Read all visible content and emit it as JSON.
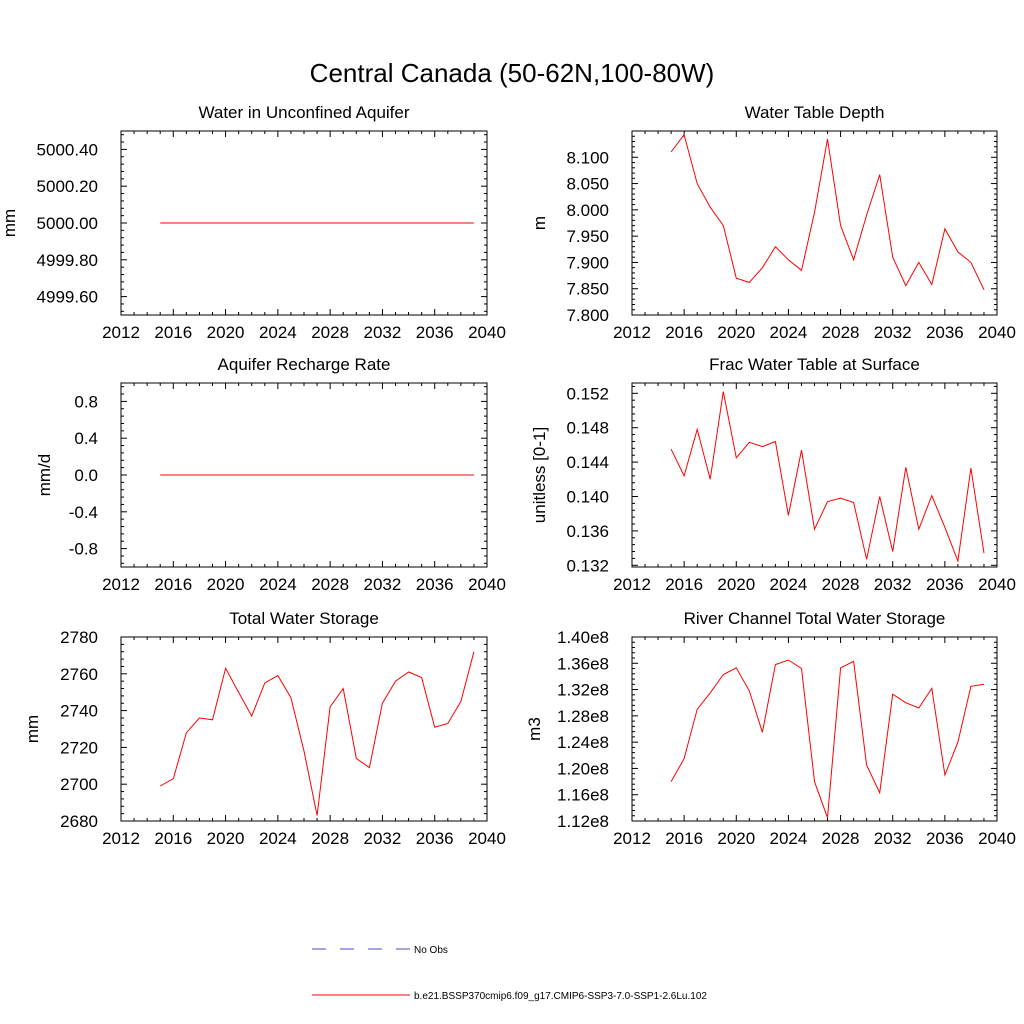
{
  "figure": {
    "title": "Central Canada (50-62N,100-80W)"
  },
  "legend": {
    "entries": [
      {
        "label": "No Obs",
        "color": "#4b4bcc",
        "dash": "dashed"
      },
      {
        "label": "b.e21.BSSP370cmip6.f09_g17.CMIP6-SSP3-7.0-SSP1-2.6Lu.102",
        "color": "#ff0000",
        "dash": "solid"
      }
    ]
  },
  "chart_data": [
    {
      "type": "line",
      "title": "Water in Unconfined Aquifer",
      "ylabel": "mm",
      "xlim": [
        2012,
        2040
      ],
      "ylim": [
        4999.5,
        5000.5
      ],
      "xticks": [
        2012,
        2016,
        2020,
        2024,
        2028,
        2032,
        2036,
        2040
      ],
      "yticks": [
        "4999.60",
        "5000.40",
        "5000.20",
        "5000.00",
        "4999.80"
      ],
      "ytick_values": [
        4999.6,
        5000.4,
        5000.2,
        5000.0,
        4999.8
      ],
      "x": [
        2015,
        2016,
        2017,
        2018,
        2019,
        2020,
        2021,
        2022,
        2023,
        2024,
        2025,
        2026,
        2027,
        2028,
        2029,
        2030,
        2031,
        2032,
        2033,
        2034,
        2035,
        2036,
        2037,
        2038,
        2039
      ],
      "series": [
        {
          "values": [
            5000,
            5000,
            5000,
            5000,
            5000,
            5000,
            5000,
            5000,
            5000,
            5000,
            5000,
            5000,
            5000,
            5000,
            5000,
            5000,
            5000,
            5000,
            5000,
            5000,
            5000,
            5000,
            5000,
            5000,
            5000
          ],
          "color": "#ff0000"
        }
      ]
    },
    {
      "type": "line",
      "title": "Water Table Depth",
      "ylabel": "m",
      "xlim": [
        2012,
        2040
      ],
      "ylim": [
        7.8,
        8.15
      ],
      "xticks": [
        2012,
        2016,
        2020,
        2024,
        2028,
        2032,
        2036,
        2040
      ],
      "yticks": [
        "7.800",
        "7.850",
        "7.900",
        "7.950",
        "8.000",
        "8.050",
        "8.100"
      ],
      "ytick_values": [
        7.8,
        7.85,
        7.9,
        7.95,
        8.0,
        8.05,
        8.1
      ],
      "x": [
        2015,
        2016,
        2017,
        2018,
        2019,
        2020,
        2021,
        2022,
        2023,
        2024,
        2025,
        2026,
        2027,
        2028,
        2029,
        2030,
        2031,
        2032,
        2033,
        2034,
        2035,
        2036,
        2037,
        2038,
        2039
      ],
      "series": [
        {
          "values": [
            8.11,
            8.143,
            8.05,
            8.005,
            7.97,
            7.87,
            7.862,
            7.89,
            7.93,
            7.905,
            7.885,
            7.995,
            8.135,
            7.97,
            7.905,
            7.99,
            8.067,
            7.91,
            7.856,
            7.9,
            7.858,
            7.964,
            7.92,
            7.9,
            7.848
          ],
          "color": "#ff0000"
        }
      ]
    },
    {
      "type": "line",
      "title": "Aquifer Recharge Rate",
      "ylabel": "mm/d",
      "xlim": [
        2012,
        2040
      ],
      "ylim": [
        -1.0,
        1.0
      ],
      "xticks": [
        2012,
        2016,
        2020,
        2024,
        2028,
        2032,
        2036,
        2040
      ],
      "yticks": [
        "-0.8",
        "-0.4",
        "0.0",
        "0.4",
        "0.8"
      ],
      "ytick_values": [
        -0.8,
        -0.4,
        0.0,
        0.4,
        0.8
      ],
      "x": [
        2015,
        2016,
        2017,
        2018,
        2019,
        2020,
        2021,
        2022,
        2023,
        2024,
        2025,
        2026,
        2027,
        2028,
        2029,
        2030,
        2031,
        2032,
        2033,
        2034,
        2035,
        2036,
        2037,
        2038,
        2039
      ],
      "series": [
        {
          "values": [
            0,
            0,
            0,
            0,
            0,
            0,
            0,
            0,
            0,
            0,
            0,
            0,
            0,
            0,
            0,
            0,
            0,
            0,
            0,
            0,
            0,
            0,
            0,
            0,
            0
          ],
          "color": "#ff0000"
        }
      ]
    },
    {
      "type": "line",
      "title": "Frac Water Table at Surface",
      "ylabel": "unitless [0-1]",
      "xlim": [
        2012,
        2040
      ],
      "ylim": [
        0.1318,
        0.1532
      ],
      "xticks": [
        2012,
        2016,
        2020,
        2024,
        2028,
        2032,
        2036,
        2040
      ],
      "yticks": [
        "0.132",
        "0.136",
        "0.140",
        "0.144",
        "0.148",
        "0.152"
      ],
      "ytick_values": [
        0.132,
        0.136,
        0.14,
        0.144,
        0.148,
        0.152
      ],
      "x": [
        2015,
        2016,
        2017,
        2018,
        2019,
        2020,
        2021,
        2022,
        2023,
        2024,
        2025,
        2026,
        2027,
        2028,
        2029,
        2030,
        2031,
        2032,
        2033,
        2034,
        2035,
        2036,
        2037,
        2038,
        2039
      ],
      "series": [
        {
          "values": [
            0.1455,
            0.1424,
            0.1478,
            0.142,
            0.1522,
            0.1445,
            0.1463,
            0.1458,
            0.1464,
            0.1378,
            0.1454,
            0.1362,
            0.1394,
            0.1398,
            0.1393,
            0.1327,
            0.14,
            0.1336,
            0.1434,
            0.1362,
            0.1401,
            0.1364,
            0.1325,
            0.1433,
            0.1334
          ],
          "color": "#ff0000"
        }
      ]
    },
    {
      "type": "line",
      "title": "Total Water Storage",
      "ylabel": "mm",
      "xlim": [
        2012,
        2040
      ],
      "ylim": [
        2680,
        2780
      ],
      "xticks": [
        2012,
        2016,
        2020,
        2024,
        2028,
        2032,
        2036,
        2040
      ],
      "yticks": [
        "2680",
        "2700",
        "2720",
        "2740",
        "2760",
        "2780"
      ],
      "ytick_values": [
        2680,
        2700,
        2720,
        2740,
        2760,
        2780
      ],
      "x": [
        2015,
        2016,
        2017,
        2018,
        2019,
        2020,
        2021,
        2022,
        2023,
        2024,
        2025,
        2026,
        2027,
        2028,
        2029,
        2030,
        2031,
        2032,
        2033,
        2034,
        2035,
        2036,
        2037,
        2038,
        2039
      ],
      "series": [
        {
          "values": [
            2699,
            2703,
            2728,
            2736,
            2735,
            2763,
            2750,
            2737,
            2755,
            2759,
            2747,
            2718,
            2683,
            2742,
            2752,
            2714,
            2709,
            2744,
            2756,
            2761,
            2758,
            2731,
            2733,
            2745,
            2772
          ],
          "color": "#ff0000"
        }
      ]
    },
    {
      "type": "line",
      "title": "River Channel Total Water Storage",
      "ylabel": "m3",
      "xlim": [
        2012,
        2040
      ],
      "ylim": [
        112000000.0,
        140000000.0
      ],
      "xticks": [
        2012,
        2016,
        2020,
        2024,
        2028,
        2032,
        2036,
        2040
      ],
      "yticks": [
        "1.12e8",
        "1.16e8",
        "1.20e8",
        "1.24e8",
        "1.28e8",
        "1.32e8",
        "1.36e8",
        "1.40e8"
      ],
      "ytick_values": [
        112000000.0,
        116000000.0,
        120000000.0,
        124000000.0,
        128000000.0,
        132000000.0,
        136000000.0,
        140000000.0
      ],
      "x": [
        2015,
        2016,
        2017,
        2018,
        2019,
        2020,
        2021,
        2022,
        2023,
        2024,
        2025,
        2026,
        2027,
        2028,
        2029,
        2030,
        2031,
        2032,
        2033,
        2034,
        2035,
        2036,
        2037,
        2038,
        2039
      ],
      "series": [
        {
          "values": [
            118000000.0,
            121500000.0,
            129000000.0,
            131500000.0,
            134300000.0,
            135300000.0,
            131800000.0,
            125500000.0,
            135800000.0,
            136500000.0,
            135200000.0,
            118000000.0,
            112500000.0,
            135300000.0,
            136300000.0,
            120500000.0,
            116300000.0,
            131300000.0,
            130000000.0,
            129200000.0,
            132200000.0,
            119000000.0,
            124000000.0,
            132500000.0,
            132800000.0
          ],
          "color": "#ff0000"
        }
      ]
    }
  ]
}
